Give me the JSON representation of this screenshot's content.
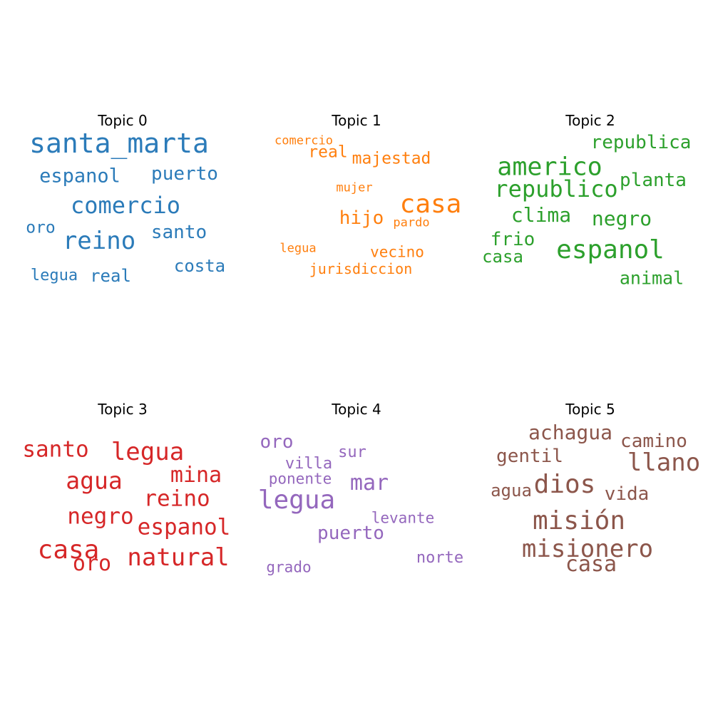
{
  "topics": [
    {
      "title": "Topic 0",
      "color": "#2b7bb9",
      "words": [
        "santa_marta",
        "espanol",
        "puerto",
        "comercio",
        "oro",
        "reino",
        "santo",
        "costa",
        "legua",
        "real"
      ]
    },
    {
      "title": "Topic 1",
      "color": "#ff7f0e",
      "words": [
        "comercio",
        "real",
        "majestad",
        "mujer",
        "casa",
        "hijo",
        "pardo",
        "legua",
        "vecino",
        "jurisdiccion"
      ]
    },
    {
      "title": "Topic 2",
      "color": "#2ca02c",
      "words": [
        "republica",
        "americo",
        "planta",
        "republico",
        "clima",
        "negro",
        "frio",
        "casa",
        "espanol",
        "animal"
      ]
    },
    {
      "title": "Topic 3",
      "color": "#d62728",
      "words": [
        "santo",
        "legua",
        "agua",
        "mina",
        "reino",
        "negro",
        "espanol",
        "casa",
        "oro",
        "natural"
      ]
    },
    {
      "title": "Topic 4",
      "color": "#9467bd",
      "words": [
        "oro",
        "villa",
        "sur",
        "ponente",
        "mar",
        "legua",
        "levante",
        "puerto",
        "norte",
        "grado"
      ]
    },
    {
      "title": "Topic 5",
      "color": "#8c564b",
      "words": [
        "achagua",
        "camino",
        "gentil",
        "llano",
        "dios",
        "agua",
        "vida",
        "misión",
        "misionero",
        "casa"
      ]
    }
  ]
}
